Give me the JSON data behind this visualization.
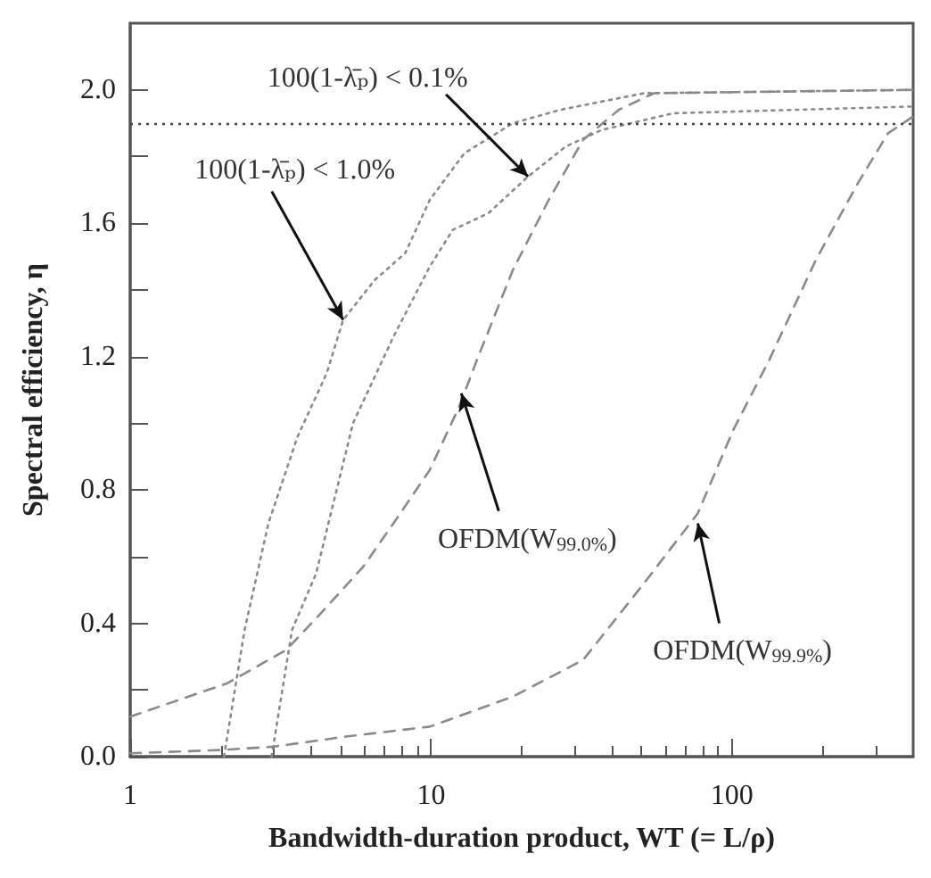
{
  "chart_data": {
    "type": "line",
    "xlabel": "Bandwidth-duration product, WT (= L/ρ)",
    "ylabel": "Spectral efficiency, η",
    "log": "x",
    "xlim": [
      1,
      400
    ],
    "ylim": [
      0,
      2.2
    ],
    "xticks": [
      1,
      10,
      100
    ],
    "yticks": [
      {
        "value": 0,
        "label": "0.0"
      },
      {
        "value": 0.2,
        "label": null
      },
      {
        "value": 0.4,
        "label": "0.4"
      },
      {
        "value": 0.6,
        "label": null
      },
      {
        "value": 0.8,
        "label": "0.8"
      },
      {
        "value": 1.0,
        "label": null
      },
      {
        "value": 1.2,
        "label": "1.2"
      },
      {
        "value": 1.4,
        "label": null
      },
      {
        "value": 1.6,
        "label": "1.6"
      },
      {
        "value": 1.8,
        "label": null
      },
      {
        "value": 2.0,
        "label": "2.0"
      }
    ],
    "grid": false,
    "marker": "none",
    "series": [
      {
        "color": "#8a8a8a",
        "line_style": "dotted",
        "x": [
          2.05,
          2.4,
          2.88,
          3.6,
          4.5,
          5.1,
          6.5,
          8.2,
          9.9,
          12.9,
          18.7,
          26.8,
          51,
          400
        ],
        "values": [
          0.0,
          0.38,
          0.7,
          0.96,
          1.15,
          1.31,
          1.43,
          1.51,
          1.67,
          1.81,
          1.9,
          1.94,
          1.99,
          2.0
        ]
      },
      {
        "color": "#8a8a8a",
        "line_style": "dotted",
        "x": [
          2.95,
          3.45,
          4.15,
          5.2,
          5.5,
          7.5,
          9.9,
          11.8,
          15.5,
          21,
          28,
          37,
          64,
          400
        ],
        "values": [
          0.0,
          0.38,
          0.55,
          0.91,
          1.0,
          1.26,
          1.47,
          1.58,
          1.63,
          1.74,
          1.83,
          1.88,
          1.93,
          1.95
        ]
      },
      {
        "color": "#8a8a8a",
        "line_style": "dashed",
        "x": [
          1,
          2.1,
          3.3,
          4.3,
          5.95,
          7.5,
          9.9,
          12.4,
          14.2,
          18.7,
          24.6,
          32,
          42,
          55,
          400
        ],
        "values": [
          0.12,
          0.22,
          0.32,
          0.43,
          0.57,
          0.7,
          0.86,
          1.05,
          1.19,
          1.46,
          1.67,
          1.85,
          1.94,
          1.99,
          2.0
        ]
      },
      {
        "color": "#8a8a8a",
        "line_style": "dashed",
        "x": [
          1,
          2,
          3,
          5.2,
          9.9,
          18.7,
          32,
          51,
          77,
          101,
          133,
          190,
          262,
          330,
          400
        ],
        "values": [
          0.01,
          0.02,
          0.03,
          0.06,
          0.09,
          0.18,
          0.29,
          0.52,
          0.73,
          0.98,
          1.19,
          1.49,
          1.72,
          1.87,
          1.92
        ]
      }
    ],
    "ref_lines": [
      {
        "axis": "y",
        "value": 1.9,
        "color": "#444444",
        "line_style": "dotted"
      }
    ],
    "annotations": [
      {
        "text": "100(1-λ̄ₚ) < 0.1%",
        "x": 21,
        "y": 1.74
      },
      {
        "text": "100(1-λ̄ₚ) < 1.0%",
        "x": 5.1,
        "y": 1.31
      },
      {
        "text": "OFDM(W$_{99.0%}$)",
        "x": 12.6,
        "y": 1.09
      },
      {
        "text": "OFDM(W$_{99.9%}$)",
        "x": 77,
        "y": 0.7
      }
    ]
  }
}
